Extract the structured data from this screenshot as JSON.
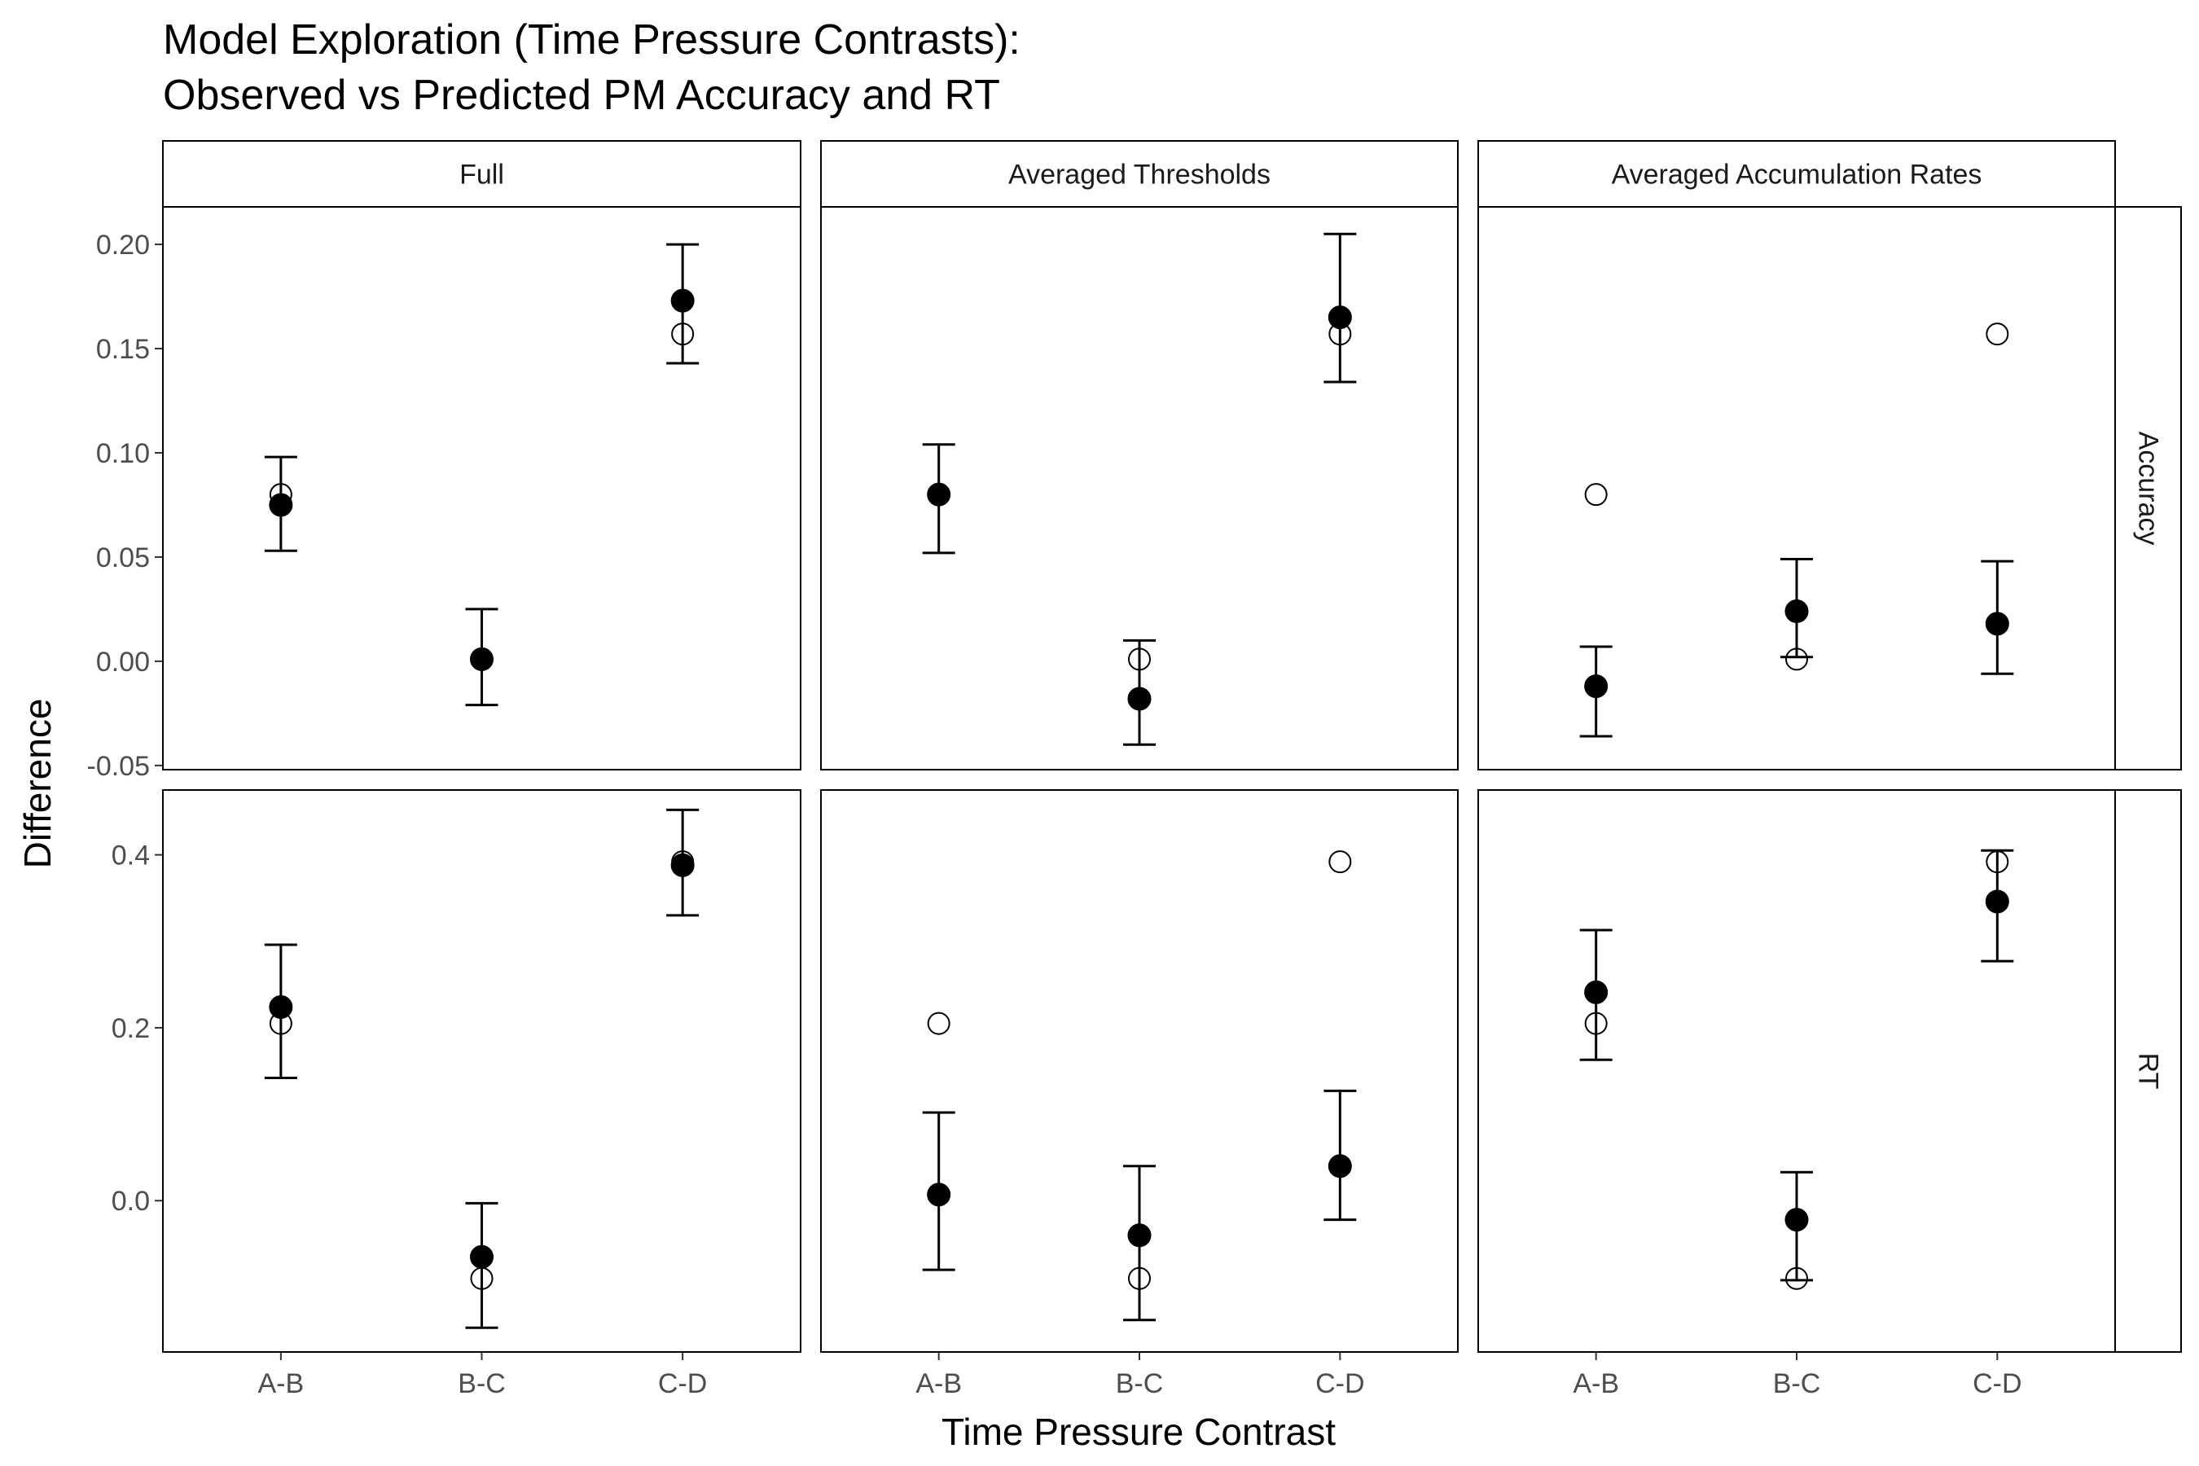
{
  "chart_data": {
    "type": "scatter",
    "title_lines": [
      "Model Exploration (Time Pressure Contrasts):",
      "Observed vs Predicted PM Accuracy and RT"
    ],
    "xlabel": "Time Pressure Contrast",
    "ylabel": "Difference",
    "categories": [
      "A-B",
      "B-C",
      "C-D"
    ],
    "columns": [
      "Full",
      "Averaged Thresholds",
      "Averaged Accumulation Rates"
    ],
    "rows": [
      {
        "label": "Accuracy",
        "ylim": [
          -0.052,
          0.218
        ],
        "yticks": [
          -0.05,
          0.0,
          0.05,
          0.1,
          0.15,
          0.2
        ],
        "yticklabels": [
          "-0.05",
          "0.00",
          "0.05",
          "0.10",
          "0.15",
          "0.20"
        ]
      },
      {
        "label": "RT",
        "ylim": [
          -0.175,
          0.475
        ],
        "yticks": [
          0.0,
          0.2,
          0.4
        ],
        "yticklabels": [
          "0.0",
          "0.2",
          "0.4"
        ]
      }
    ],
    "panels": [
      {
        "row": "Accuracy",
        "col": "Full",
        "observed": [
          0.08,
          0.001,
          0.157
        ],
        "predicted": [
          0.075,
          0.001,
          0.173
        ],
        "lower": [
          0.053,
          -0.021,
          0.143
        ],
        "upper": [
          0.098,
          0.025,
          0.2
        ]
      },
      {
        "row": "Accuracy",
        "col": "Averaged Thresholds",
        "observed": [
          0.08,
          0.001,
          0.157
        ],
        "predicted": [
          0.08,
          -0.018,
          0.165
        ],
        "lower": [
          0.052,
          -0.04,
          0.134
        ],
        "upper": [
          0.104,
          0.01,
          0.205
        ]
      },
      {
        "row": "Accuracy",
        "col": "Averaged Accumulation Rates",
        "observed": [
          0.08,
          0.001,
          0.157
        ],
        "predicted": [
          -0.012,
          0.024,
          0.018
        ],
        "lower": [
          -0.036,
          0.002,
          -0.006
        ],
        "upper": [
          0.007,
          0.049,
          0.048
        ]
      },
      {
        "row": "RT",
        "col": "Full",
        "observed": [
          0.205,
          -0.09,
          0.392
        ],
        "predicted": [
          0.224,
          -0.065,
          0.388
        ],
        "lower": [
          0.142,
          -0.147,
          0.33
        ],
        "upper": [
          0.296,
          -0.003,
          0.452
        ]
      },
      {
        "row": "RT",
        "col": "Averaged Thresholds",
        "observed": [
          0.205,
          -0.09,
          0.392
        ],
        "predicted": [
          0.007,
          -0.04,
          0.04
        ],
        "lower": [
          -0.08,
          -0.138,
          -0.022
        ],
        "upper": [
          0.102,
          0.04,
          0.127
        ]
      },
      {
        "row": "RT",
        "col": "Averaged Accumulation Rates",
        "observed": [
          0.205,
          -0.09,
          0.392
        ],
        "predicted": [
          0.241,
          -0.022,
          0.346
        ],
        "lower": [
          0.163,
          -0.092,
          0.277
        ],
        "upper": [
          0.313,
          0.033,
          0.405
        ]
      }
    ],
    "series": [
      {
        "name": "",
        "marker": "open-circle",
        "key": "observed"
      },
      {
        "name": "",
        "marker": "filled-circle",
        "key": "predicted",
        "error_bars": true
      }
    ],
    "grid": false,
    "legend": "none"
  }
}
